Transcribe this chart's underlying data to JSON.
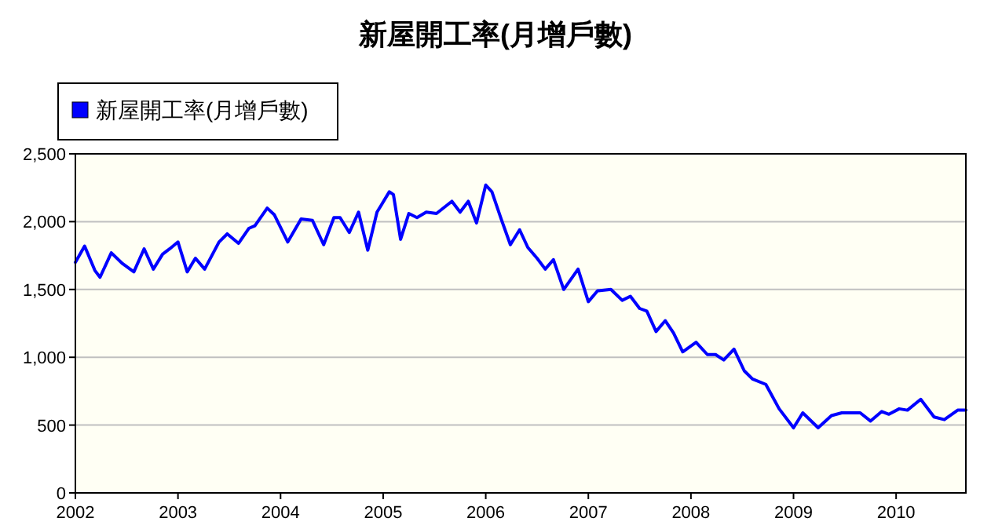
{
  "chart_data": {
    "type": "line",
    "title": "新屋開工率(月增戶數)",
    "legend": "top left",
    "grid": "y",
    "marker": "none",
    "line_style": "solid",
    "xlim": [
      2002,
      2010.68
    ],
    "xticks": [
      2002,
      2003,
      2004,
      2005,
      2006,
      2007,
      2008,
      2009,
      2010
    ],
    "ylim": [
      0,
      2500
    ],
    "yticks": [
      0,
      500,
      {
        "value": 1000,
        "label": "1,000"
      },
      {
        "value": 1500,
        "label": "1,500"
      },
      {
        "value": 2000,
        "label": "2,000"
      },
      {
        "value": 2500,
        "label": "2,500"
      }
    ],
    "series": [
      {
        "name": "新屋開工率(月增戶數)",
        "color": "#0000ff",
        "x": [
          2002.0,
          2002.09,
          2002.19,
          2002.24,
          2002.35,
          2002.46,
          2002.57,
          2002.67,
          2002.76,
          2002.85,
          2002.92,
          2003.0,
          2003.09,
          2003.17,
          2003.26,
          2003.4,
          2003.48,
          2003.59,
          2003.69,
          2003.75,
          2003.87,
          2003.94,
          2004.07,
          2004.2,
          2004.31,
          2004.42,
          2004.52,
          2004.58,
          2004.67,
          2004.76,
          2004.85,
          2004.94,
          2004.98,
          2005.06,
          2005.1,
          2005.17,
          2005.25,
          2005.33,
          2005.42,
          2005.52,
          2005.67,
          2005.75,
          2005.83,
          2005.91,
          2006.0,
          2006.06,
          2006.15,
          2006.24,
          2006.33,
          2006.41,
          2006.5,
          2006.58,
          2006.66,
          2006.76,
          2006.9,
          2007.0,
          2007.09,
          2007.22,
          2007.33,
          2007.41,
          2007.5,
          2007.57,
          2007.66,
          2007.75,
          2007.83,
          2007.92,
          2008.05,
          2008.16,
          2008.24,
          2008.32,
          2008.42,
          2008.52,
          2008.6,
          2008.73,
          2008.86,
          2009.0,
          2009.09,
          2009.24,
          2009.37,
          2009.47,
          2009.65,
          2009.75,
          2009.86,
          2009.93,
          2010.03,
          2010.11,
          2010.24,
          2010.37,
          2010.47,
          2010.6,
          2010.68
        ],
        "values": [
          1700,
          1820,
          1640,
          1590,
          1770,
          1690,
          1630,
          1800,
          1650,
          1760,
          1800,
          1850,
          1630,
          1730,
          1650,
          1850,
          1910,
          1840,
          1950,
          1970,
          2100,
          2050,
          1850,
          2020,
          2010,
          1830,
          2030,
          2030,
          1920,
          2070,
          1790,
          2070,
          2120,
          2220,
          2200,
          1870,
          2060,
          2030,
          2070,
          2060,
          2150,
          2070,
          2150,
          1990,
          2270,
          2220,
          2020,
          1830,
          1940,
          1810,
          1730,
          1650,
          1720,
          1500,
          1650,
          1410,
          1490,
          1500,
          1420,
          1450,
          1360,
          1340,
          1190,
          1270,
          1180,
          1040,
          1110,
          1020,
          1020,
          980,
          1060,
          900,
          840,
          800,
          620,
          480,
          590,
          480,
          570,
          590,
          590,
          530,
          600,
          580,
          620,
          610,
          690,
          560,
          540,
          610,
          610
        ]
      }
    ]
  }
}
